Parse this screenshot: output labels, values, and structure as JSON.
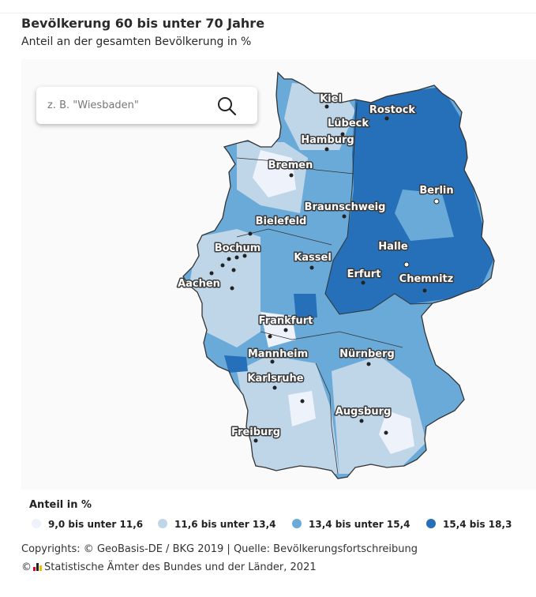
{
  "title": "Bevölkerung 60 bis unter 70 Jahre",
  "subtitle": "Anteil an der gesamten Bevölkerung in %",
  "search": {
    "placeholder": "z. B. \"Wiesbaden\""
  },
  "map": {
    "cities": [
      "Kiel",
      "Rostock",
      "Lübeck",
      "Hamburg",
      "Bremen",
      "Berlin",
      "Braunschweig",
      "Bielefeld",
      "Bochum",
      "Kassel",
      "Halle",
      "Aachen",
      "Erfurt",
      "Chemnitz",
      "Frankfurt",
      "Nürnberg",
      "Mannheim",
      "Karlsruhe",
      "Augsburg",
      "Freiburg"
    ]
  },
  "legend": {
    "title": "Anteil in %",
    "items": [
      {
        "label": "9,0 bis unter 11,6",
        "color": "#eef3fb"
      },
      {
        "label": "11,6 bis unter 13,4",
        "color": "#bfd5e8"
      },
      {
        "label": "13,4 bis unter 15,4",
        "color": "#6aaad8"
      },
      {
        "label": "15,4 bis 18,3",
        "color": "#2570b9"
      }
    ]
  },
  "credits": {
    "line1": "Copyrights: © GeoBasis-DE / BKG 2019 | Quelle: Bevölkerungsfortschreibung",
    "line2_prefix": "©",
    "line2_text": "Statistische Ämter des Bundes und der Länder, 2021"
  }
}
